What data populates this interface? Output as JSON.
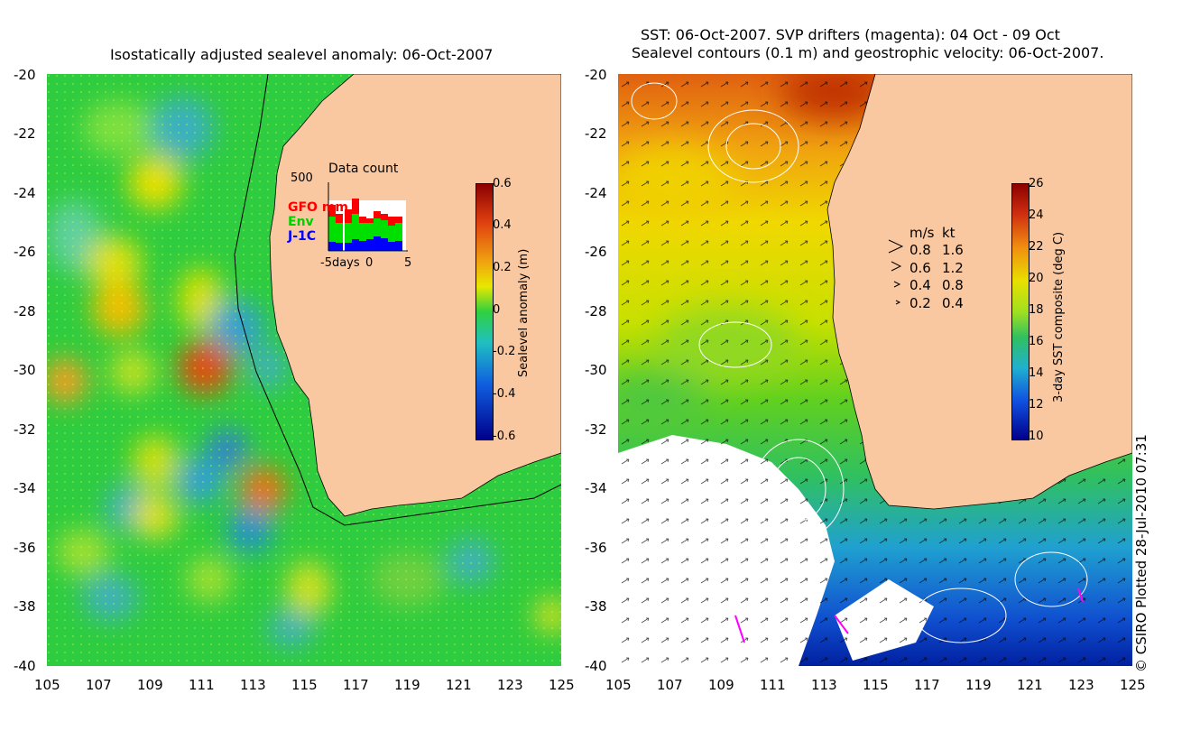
{
  "left_map": {
    "title": "Isostatically adjusted sealevel anomaly: 06-Oct-2007",
    "y_ticks": [
      "-20",
      "-22",
      "-24",
      "-26",
      "-28",
      "-30",
      "-32",
      "-34",
      "-36",
      "-38",
      "-40"
    ],
    "x_ticks": [
      "105",
      "107",
      "109",
      "111",
      "113",
      "115",
      "117",
      "119",
      "121",
      "123",
      "125"
    ],
    "colorbar": {
      "label": "Sealevel anomaly (m)",
      "ticks": [
        "0.6",
        "0.4",
        "0.2",
        "0",
        "-0.2",
        "-0.4",
        "-0.6"
      ]
    },
    "data_count": {
      "title": "Data count",
      "max_label": "500",
      "legend": [
        {
          "label": "GFO mm",
          "color": "#ff0000"
        },
        {
          "label": "Env",
          "color": "#00e000"
        },
        {
          "label": "J-1C",
          "color": "#0000ff"
        }
      ],
      "x_labels": [
        "-5days",
        "0",
        "5"
      ]
    },
    "colors": {
      "land": "#f9c8a0",
      "ocean": "#22cc44"
    }
  },
  "right_map": {
    "title_line1": "SST: 06-Oct-2007. SVP drifters (magenta): 04 Oct - 09 Oct",
    "title_line2": "Sealevel contours (0.1 m) and geostrophic velocity: 06-Oct-2007.",
    "y_ticks": [
      "-20",
      "-22",
      "-24",
      "-26",
      "-28",
      "-30",
      "-32",
      "-34",
      "-36",
      "-38",
      "-40"
    ],
    "x_ticks": [
      "105",
      "107",
      "109",
      "111",
      "113",
      "115",
      "117",
      "119",
      "121",
      "123",
      "125"
    ],
    "colorbar": {
      "label": "3-day SST composite (deg C)",
      "ticks": [
        "26",
        "24",
        "22",
        "20",
        "18",
        "16",
        "14",
        "12",
        "10"
      ]
    },
    "velocity_legend": {
      "header_ms": "m/s",
      "header_kt": "kt",
      "rows": [
        {
          "ms": "0.8",
          "kt": "1.6"
        },
        {
          "ms": "0.6",
          "kt": "1.2"
        },
        {
          "ms": "0.4",
          "kt": "0.8"
        },
        {
          "ms": "0.2",
          "kt": "0.4"
        }
      ]
    }
  },
  "copyright": "© CSIRO Plotted 28-Jul-2010 07:31"
}
